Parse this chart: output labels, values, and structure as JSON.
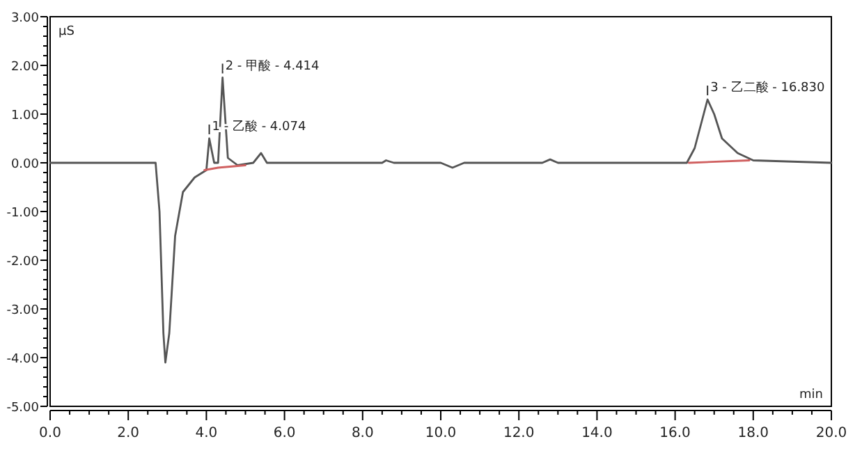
{
  "chart_data": {
    "type": "line",
    "xlabel": "min",
    "ylabel": "µS",
    "xlim": [
      0,
      20
    ],
    "ylim": [
      -5,
      3
    ],
    "xticks": [
      {
        "value": 0,
        "label": "0.0"
      },
      {
        "value": 2,
        "label": "2.0"
      },
      {
        "value": 4,
        "label": "4.0"
      },
      {
        "value": 6,
        "label": "6.0"
      },
      {
        "value": 8,
        "label": "8.0"
      },
      {
        "value": 10,
        "label": "10.0"
      },
      {
        "value": 12,
        "label": "12.0"
      },
      {
        "value": 14,
        "label": "14.0"
      },
      {
        "value": 16,
        "label": "16.0"
      },
      {
        "value": 18,
        "label": "18.0"
      },
      {
        "value": 20,
        "label": "20.0"
      }
    ],
    "yticks": [
      {
        "value": 3,
        "label": "3.00"
      },
      {
        "value": 2,
        "label": "2.00"
      },
      {
        "value": 1,
        "label": "1.00"
      },
      {
        "value": 0,
        "label": "0.00"
      },
      {
        "value": -1,
        "label": "-1.00"
      },
      {
        "value": -2,
        "label": "-2.00"
      },
      {
        "value": -3,
        "label": "-3.00"
      },
      {
        "value": -4,
        "label": "-4.00"
      },
      {
        "value": -5,
        "label": "-5.00"
      }
    ],
    "grid": false,
    "series": [
      {
        "color": "#555555",
        "x": [
          0,
          2.7,
          2.8,
          2.9,
          2.95,
          3.05,
          3.2,
          3.4,
          3.7,
          4.0,
          4.074,
          4.2,
          4.3,
          4.414,
          4.55,
          4.8,
          5.2,
          5.4,
          5.55,
          8.5,
          8.6,
          8.8,
          10.0,
          10.3,
          10.6,
          12.6,
          12.8,
          13.0,
          16.3,
          16.5,
          16.83,
          17.0,
          17.2,
          17.6,
          18.0,
          20
        ],
        "values": [
          0,
          0,
          -1.0,
          -3.5,
          -4.1,
          -3.5,
          -1.5,
          -0.6,
          -0.3,
          -0.15,
          0.5,
          0.0,
          0.0,
          1.75,
          0.1,
          -0.05,
          0.0,
          0.2,
          0.0,
          0.0,
          0.05,
          0.0,
          0.0,
          -0.1,
          0.0,
          0.0,
          0.07,
          0.0,
          0.0,
          0.3,
          1.3,
          1.0,
          0.5,
          0.2,
          0.05,
          0
        ]
      },
      {
        "color": "#d06060",
        "x": [
          3.95,
          4.3,
          5.0
        ],
        "values": [
          -0.15,
          -0.1,
          -0.05
        ]
      },
      {
        "color": "#d06060",
        "x": [
          16.35,
          17.9
        ],
        "values": [
          0,
          0.05
        ]
      }
    ],
    "annotations": [
      {
        "text": "1 - 乙酸 - 4.074",
        "x": 4.074,
        "y": 0.5
      },
      {
        "text": "2 - 甲酸 - 4.414",
        "x": 4.414,
        "y": 1.75
      },
      {
        "text": "3 - 乙二酸 - 16.830",
        "x": 16.83,
        "y": 1.3
      }
    ]
  }
}
